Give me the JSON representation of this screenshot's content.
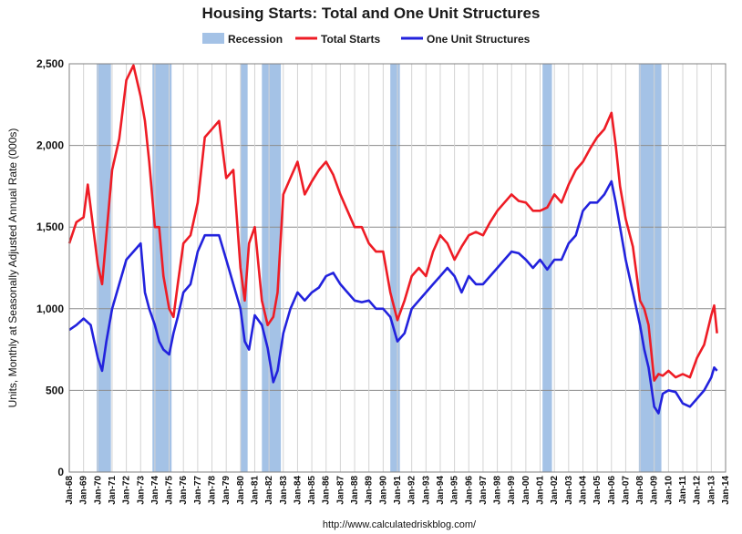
{
  "chart_data": {
    "type": "line",
    "title": "Housing Starts: Total and One Unit Structures",
    "ylabel": "Units, Monthly at Seasonally Adjusted Annual Rate (000s)",
    "source": "http://www.calculatedriskblog.com/",
    "ylim": [
      0,
      2500
    ],
    "xlim": [
      1968.0,
      2014.0
    ],
    "grid": true,
    "legend_position": "top",
    "y_ticks": [
      0,
      500,
      1000,
      1500,
      2000,
      2500
    ],
    "y_tick_labels": [
      "0",
      "500",
      "1,000",
      "1,500",
      "2,000",
      "2,500"
    ],
    "x_tick_labels": [
      "Jan-68",
      "Jan-69",
      "Jan-70",
      "Jan-71",
      "Jan-72",
      "Jan-73",
      "Jan-74",
      "Jan-75",
      "Jan-76",
      "Jan-77",
      "Jan-78",
      "Jan-79",
      "Jan-80",
      "Jan-81",
      "Jan-82",
      "Jan-83",
      "Jan-84",
      "Jan-85",
      "Jan-86",
      "Jan-87",
      "Jan-88",
      "Jan-89",
      "Jan-90",
      "Jan-91",
      "Jan-92",
      "Jan-93",
      "Jan-94",
      "Jan-95",
      "Jan-96",
      "Jan-97",
      "Jan-98",
      "Jan-99",
      "Jan-00",
      "Jan-01",
      "Jan-02",
      "Jan-03",
      "Jan-04",
      "Jan-05",
      "Jan-06",
      "Jan-07",
      "Jan-08",
      "Jan-09",
      "Jan-10",
      "Jan-11",
      "Jan-12",
      "Jan-13",
      "Jan-14"
    ],
    "recessions": [
      {
        "start": 1969.92,
        "end": 1970.92
      },
      {
        "start": 1973.83,
        "end": 1975.17
      },
      {
        "start": 1980.0,
        "end": 1980.5
      },
      {
        "start": 1981.5,
        "end": 1982.83
      },
      {
        "start": 1990.5,
        "end": 1991.17
      },
      {
        "start": 2001.17,
        "end": 2001.83
      },
      {
        "start": 2007.92,
        "end": 2009.5
      }
    ],
    "legend": [
      {
        "name": "Recession",
        "color": "#a4c2e6",
        "kind": "box"
      },
      {
        "name": "Total Starts",
        "color": "#ee1c25",
        "kind": "line"
      },
      {
        "name": "One Unit Structures",
        "color": "#2222dd",
        "kind": "line"
      }
    ],
    "series": [
      {
        "name": "Total Starts",
        "color": "#ee1c25",
        "x": [
          1968.0,
          1968.5,
          1969.0,
          1969.3,
          1969.6,
          1970.0,
          1970.3,
          1970.6,
          1971.0,
          1971.5,
          1972.0,
          1972.5,
          1973.0,
          1973.3,
          1973.6,
          1974.0,
          1974.3,
          1974.6,
          1975.0,
          1975.3,
          1975.6,
          1976.0,
          1976.5,
          1977.0,
          1977.5,
          1978.0,
          1978.5,
          1979.0,
          1979.5,
          1980.0,
          1980.3,
          1980.6,
          1981.0,
          1981.5,
          1981.9,
          1982.3,
          1982.6,
          1983.0,
          1983.5,
          1984.0,
          1984.5,
          1985.0,
          1985.5,
          1986.0,
          1986.5,
          1987.0,
          1987.5,
          1988.0,
          1988.5,
          1989.0,
          1989.5,
          1990.0,
          1990.5,
          1991.0,
          1991.5,
          1992.0,
          1992.5,
          1993.0,
          1993.5,
          1994.0,
          1994.5,
          1995.0,
          1995.5,
          1996.0,
          1996.5,
          1997.0,
          1997.5,
          1998.0,
          1998.5,
          1999.0,
          1999.5,
          2000.0,
          2000.5,
          2001.0,
          2001.5,
          2002.0,
          2002.5,
          2003.0,
          2003.5,
          2004.0,
          2004.5,
          2005.0,
          2005.5,
          2006.0,
          2006.3,
          2006.6,
          2007.0,
          2007.5,
          2008.0,
          2008.3,
          2008.6,
          2009.0,
          2009.3,
          2009.6,
          2010.0,
          2010.5,
          2011.0,
          2011.5,
          2012.0,
          2012.5,
          2013.0,
          2013.2,
          2013.4
        ],
        "values": [
          1400,
          1530,
          1560,
          1760,
          1550,
          1270,
          1150,
          1450,
          1850,
          2040,
          2400,
          2490,
          2300,
          2150,
          1900,
          1500,
          1500,
          1200,
          1000,
          950,
          1150,
          1400,
          1450,
          1650,
          2050,
          2100,
          2150,
          1800,
          1850,
          1250,
          1050,
          1400,
          1500,
          1050,
          900,
          950,
          1100,
          1700,
          1800,
          1900,
          1700,
          1780,
          1850,
          1900,
          1820,
          1700,
          1600,
          1500,
          1500,
          1400,
          1350,
          1350,
          1100,
          930,
          1050,
          1200,
          1250,
          1200,
          1350,
          1450,
          1400,
          1300,
          1380,
          1450,
          1470,
          1450,
          1530,
          1600,
          1650,
          1700,
          1660,
          1650,
          1600,
          1600,
          1620,
          1700,
          1650,
          1760,
          1850,
          1900,
          1980,
          2050,
          2100,
          2200,
          2000,
          1750,
          1550,
          1380,
          1050,
          1000,
          900,
          560,
          600,
          590,
          620,
          580,
          600,
          580,
          700,
          780,
          960,
          1020,
          850
        ]
      },
      {
        "name": "One Unit Structures",
        "color": "#2222dd",
        "x": [
          1968.0,
          1968.5,
          1969.0,
          1969.5,
          1970.0,
          1970.3,
          1970.6,
          1971.0,
          1971.5,
          1972.0,
          1972.5,
          1973.0,
          1973.3,
          1973.6,
          1974.0,
          1974.3,
          1974.6,
          1975.0,
          1975.3,
          1975.6,
          1976.0,
          1976.5,
          1977.0,
          1977.5,
          1978.0,
          1978.5,
          1979.0,
          1979.5,
          1980.0,
          1980.3,
          1980.6,
          1981.0,
          1981.5,
          1981.9,
          1982.3,
          1982.6,
          1983.0,
          1983.5,
          1984.0,
          1984.5,
          1985.0,
          1985.5,
          1986.0,
          1986.5,
          1987.0,
          1987.5,
          1988.0,
          1988.5,
          1989.0,
          1989.5,
          1990.0,
          1990.5,
          1991.0,
          1991.5,
          1992.0,
          1992.5,
          1993.0,
          1993.5,
          1994.0,
          1994.5,
          1995.0,
          1995.5,
          1996.0,
          1996.5,
          1997.0,
          1997.5,
          1998.0,
          1998.5,
          1999.0,
          1999.5,
          2000.0,
          2000.5,
          2001.0,
          2001.5,
          2002.0,
          2002.5,
          2003.0,
          2003.5,
          2004.0,
          2004.5,
          2005.0,
          2005.5,
          2006.0,
          2006.3,
          2006.6,
          2007.0,
          2007.5,
          2008.0,
          2008.3,
          2008.6,
          2009.0,
          2009.3,
          2009.6,
          2010.0,
          2010.5,
          2011.0,
          2011.5,
          2012.0,
          2012.5,
          2013.0,
          2013.2,
          2013.4
        ],
        "values": [
          870,
          900,
          940,
          900,
          700,
          620,
          800,
          1000,
          1150,
          1300,
          1350,
          1400,
          1100,
          1000,
          900,
          800,
          750,
          720,
          850,
          950,
          1100,
          1150,
          1350,
          1450,
          1450,
          1450,
          1300,
          1150,
          1000,
          800,
          750,
          960,
          900,
          760,
          550,
          620,
          850,
          1000,
          1100,
          1050,
          1100,
          1130,
          1200,
          1220,
          1150,
          1100,
          1050,
          1040,
          1050,
          1000,
          1000,
          950,
          800,
          850,
          1000,
          1050,
          1100,
          1150,
          1200,
          1250,
          1200,
          1100,
          1200,
          1150,
          1150,
          1200,
          1250,
          1300,
          1350,
          1340,
          1300,
          1250,
          1300,
          1240,
          1300,
          1300,
          1400,
          1450,
          1600,
          1650,
          1650,
          1700,
          1780,
          1650,
          1500,
          1300,
          1100,
          900,
          750,
          640,
          400,
          360,
          480,
          500,
          490,
          420,
          400,
          450,
          500,
          580,
          640,
          620
        ]
      }
    ]
  }
}
